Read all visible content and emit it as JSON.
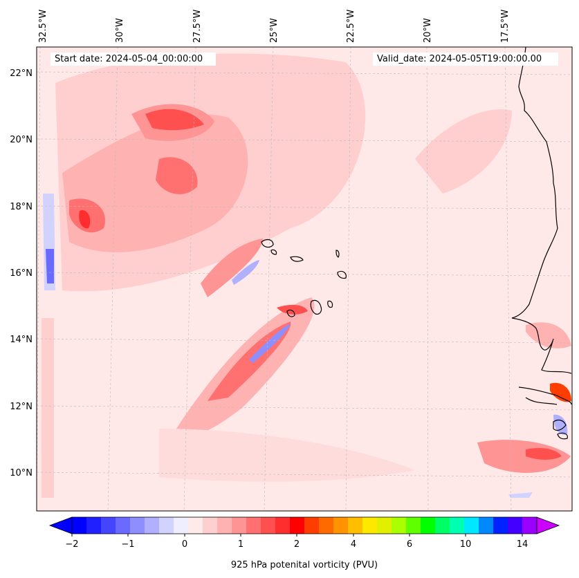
{
  "header": {
    "start_label": "Start date: 2024-05-04_00:00:00",
    "valid_label": "Valid_date: 2024-05-05T19:00:00.00"
  },
  "map": {
    "lon_labels": [
      "32.5°W",
      "30°W",
      "27.5°W",
      "25°W",
      "22.5°W",
      "20°W",
      "17.5°W"
    ],
    "lat_labels": [
      "22°N",
      "20°N",
      "18°N",
      "16°N",
      "14°N",
      "12°N",
      "10°N"
    ],
    "background_color": "#ffe8e8",
    "coastline_color": "#000000",
    "gridline_color": "#bbbbbb"
  },
  "colorbar": {
    "label": "925 hPa potenital vorticity (PVU)",
    "ticks": [
      "−2",
      "−1",
      "0",
      "1",
      "2",
      "4",
      "6",
      "10",
      "14"
    ],
    "colors": [
      "#0000ff",
      "#2020ff",
      "#4545ff",
      "#6a6aff",
      "#8e8eff",
      "#b0b0ff",
      "#d2d2ff",
      "#eeeeff",
      "#ffeaea",
      "#ffcfcf",
      "#ffb2b2",
      "#ff9494",
      "#ff7070",
      "#ff5050",
      "#ff2e2e",
      "#ff0000",
      "#ff3d00",
      "#ff6a00",
      "#ff9400",
      "#ffbe00",
      "#ffe800",
      "#e0f000",
      "#aaff00",
      "#60ff00",
      "#00ff00",
      "#00ff66",
      "#00ffb0",
      "#00e8ff",
      "#0088ff",
      "#0022ff",
      "#4400ff",
      "#9900ff"
    ],
    "under_color": "#0000ff",
    "over_color": "#cc00ff"
  }
}
